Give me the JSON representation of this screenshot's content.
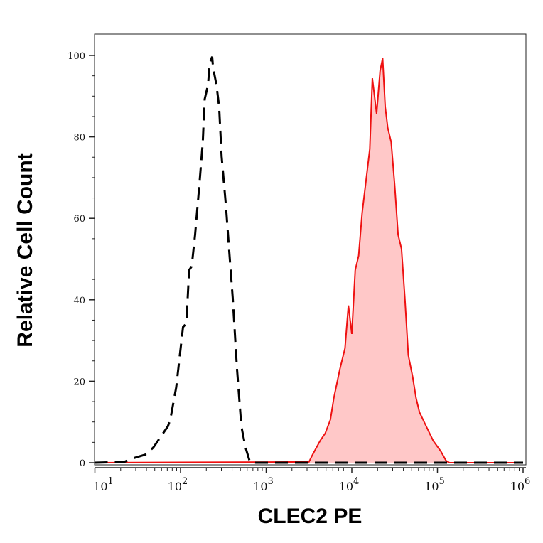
{
  "chart_data": {
    "type": "area",
    "xlabel": "CLEC2 PE",
    "ylabel": "Relative Cell Count",
    "xscale": "log",
    "xlim": [
      10,
      1000000
    ],
    "ylim": [
      0,
      100
    ],
    "grid": false,
    "x_ticks": [
      {
        "base": "10",
        "exp": "1",
        "value": 10
      },
      {
        "base": "10",
        "exp": "2",
        "value": 100
      },
      {
        "base": "10",
        "exp": "3",
        "value": 1000
      },
      {
        "base": "10",
        "exp": "4",
        "value": 10000
      },
      {
        "base": "10",
        "exp": "5",
        "value": 100000
      },
      {
        "base": "10",
        "exp": "6",
        "value": 1000000
      }
    ],
    "y_ticks": [
      "0",
      "20",
      "40",
      "60",
      "80",
      "100"
    ],
    "series": [
      {
        "style": "dashed-line",
        "color": "#000000",
        "fill": "none",
        "x": [
          10,
          22,
          27,
          39,
          48,
          71,
          76,
          89,
          107,
          117,
          126,
          135,
          148,
          166,
          182,
          191,
          209,
          219,
          234,
          240,
          263,
          282,
          302,
          339,
          363,
          407,
          457,
          513,
          575,
          646,
          759,
          1000000
        ],
        "y": [
          0,
          0.2,
          1,
          2,
          3.7,
          8.9,
          10.6,
          18.5,
          33.3,
          34.2,
          47.3,
          48.2,
          56,
          68.2,
          78.7,
          89.2,
          92.7,
          97.9,
          99.7,
          97,
          92.7,
          87.4,
          75.2,
          63,
          54.3,
          40.3,
          22.9,
          8.9,
          3.7,
          0.2,
          0,
          0
        ]
      },
      {
        "style": "filled-line",
        "color": "#ee1111",
        "fill": "#ffc8c8",
        "x": [
          10,
          3162,
          3467,
          4266,
          4898,
          5623,
          6166,
          7244,
          8318,
          9120,
          10000,
          10965,
          12023,
          13183,
          14791,
          16218,
          17378,
          18621,
          19498,
          21380,
          22909,
          24547,
          26303,
          28840,
          31623,
          34674,
          38019,
          41687,
          45709,
          51286,
          56234,
          61660,
          74131,
          89125,
          109648,
          125893,
          138038,
          1000000
        ],
        "y": [
          0,
          0.2,
          1.9,
          5.4,
          7.2,
          10.6,
          15.9,
          22.9,
          28.1,
          38.6,
          31.6,
          47.3,
          50.8,
          61.3,
          70,
          77,
          94.4,
          89.2,
          85.7,
          96.2,
          99.3,
          87.4,
          82.2,
          78.7,
          68.2,
          56,
          52.5,
          40.3,
          26.4,
          21.1,
          15.9,
          12.4,
          8.9,
          5.4,
          2.8,
          0.5,
          0,
          0
        ]
      }
    ]
  }
}
